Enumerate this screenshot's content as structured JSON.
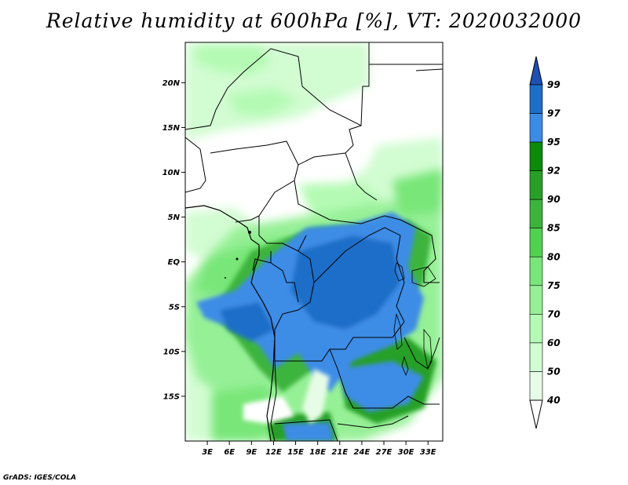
{
  "title": "Relative humidity at 600hPa [%], VT: 2020032000",
  "credit": "GrADS: IGES/COLA",
  "map": {
    "lon_range": [
      0,
      35
    ],
    "lat_range": [
      -20,
      24.5
    ],
    "lat_ticks": [
      {
        "value": 20,
        "label": "20N"
      },
      {
        "value": 15,
        "label": "15N"
      },
      {
        "value": 10,
        "label": "10N"
      },
      {
        "value": 5,
        "label": "5N"
      },
      {
        "value": 0,
        "label": "EQ"
      },
      {
        "value": -5,
        "label": "5S"
      },
      {
        "value": -10,
        "label": "10S"
      },
      {
        "value": -15,
        "label": "15S"
      }
    ],
    "lon_ticks": [
      {
        "value": 3,
        "label": "3E"
      },
      {
        "value": 6,
        "label": "6E"
      },
      {
        "value": 9,
        "label": "9E"
      },
      {
        "value": 12,
        "label": "12E"
      },
      {
        "value": 15,
        "label": "15E"
      },
      {
        "value": 18,
        "label": "18E"
      },
      {
        "value": 21,
        "label": "21E"
      },
      {
        "value": 24,
        "label": "24E"
      },
      {
        "value": 27,
        "label": "27E"
      },
      {
        "value": 30,
        "label": "30E"
      },
      {
        "value": 33,
        "label": "33E"
      }
    ]
  },
  "colorbar": {
    "levels": [
      "99",
      "97",
      "95",
      "92",
      "90",
      "85",
      "80",
      "75",
      "70",
      "60",
      "50",
      "40"
    ],
    "colors": [
      "#1e6ec8",
      "#3c8ce6",
      "#0a8c0a",
      "#28a028",
      "#3cb43c",
      "#50d250",
      "#78e678",
      "#96f096",
      "#b4fab4",
      "#d2fcd2",
      "#e6fce6"
    ],
    "top_color": "#1e50b4",
    "bottom_color": "#ffffff"
  }
}
